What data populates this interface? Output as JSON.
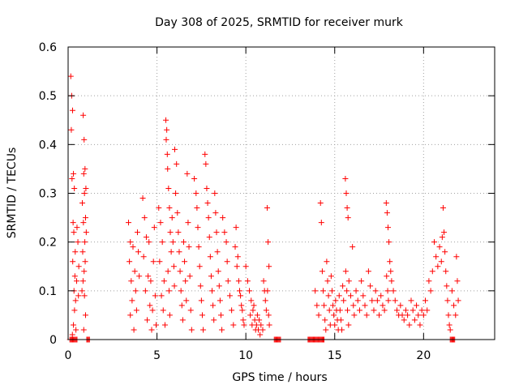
{
  "chart_data": {
    "type": "scatter",
    "title": "Day 308 of 2025, SRMTID for receiver murk",
    "xlabel": "GPS time / hours",
    "ylabel": "SRMTID / TECUs",
    "xlim": [
      0,
      24
    ],
    "ylim": [
      0,
      0.6
    ],
    "xticks": [
      0,
      5,
      10,
      15,
      20
    ],
    "xtick_labels": [
      "0",
      "5",
      "10",
      "15",
      "20"
    ],
    "yticks": [
      0,
      0.1,
      0.2,
      0.3,
      0.4,
      0.5,
      0.6
    ],
    "ytick_labels": [
      "0",
      "0.1",
      "0.2",
      "0.3",
      "0.4",
      "0.5",
      "0.6"
    ],
    "grid": true,
    "marker": "+",
    "color": "#ff0000",
    "series": [
      {
        "name": "SRMTID",
        "points": [
          [
            0.15,
            0.54
          ],
          [
            0.2,
            0.5
          ],
          [
            0.25,
            0.47
          ],
          [
            0.18,
            0.43
          ],
          [
            0.3,
            0.34
          ],
          [
            0.22,
            0.33
          ],
          [
            0.35,
            0.31
          ],
          [
            0.28,
            0.24
          ],
          [
            0.32,
            0.22
          ],
          [
            0.4,
            0.18
          ],
          [
            0.26,
            0.16
          ],
          [
            0.38,
            0.13
          ],
          [
            0.33,
            0.1
          ],
          [
            0.42,
            0.08
          ],
          [
            0.36,
            0.06
          ],
          [
            0.3,
            0.03
          ],
          [
            0.44,
            0.02
          ],
          [
            0.24,
            0.01
          ],
          [
            0.5,
            0.23
          ],
          [
            0.55,
            0.2
          ],
          [
            0.6,
            0.15
          ],
          [
            0.48,
            0.12
          ],
          [
            0.58,
            0.09
          ],
          [
            0.85,
            0.46
          ],
          [
            0.9,
            0.41
          ],
          [
            0.95,
            0.35
          ],
          [
            0.88,
            0.34
          ],
          [
            1.0,
            0.31
          ],
          [
            0.92,
            0.3
          ],
          [
            0.8,
            0.28
          ],
          [
            0.98,
            0.25
          ],
          [
            0.86,
            0.24
          ],
          [
            0.94,
            0.2
          ],
          [
            0.82,
            0.18
          ],
          [
            0.96,
            0.16
          ],
          [
            0.9,
            0.14
          ],
          [
            0.84,
            0.12
          ],
          [
            0.92,
            0.09
          ],
          [
            0.98,
            0.05
          ],
          [
            0.88,
            0.02
          ],
          [
            1.02,
            0.22
          ],
          [
            0.78,
            0.1
          ],
          [
            3.4,
            0.24
          ],
          [
            3.5,
            0.2
          ],
          [
            3.45,
            0.16
          ],
          [
            3.55,
            0.12
          ],
          [
            3.6,
            0.08
          ],
          [
            3.5,
            0.05
          ],
          [
            3.7,
            0.02
          ],
          [
            3.65,
            0.19
          ],
          [
            3.75,
            0.14
          ],
          [
            3.8,
            0.1
          ],
          [
            3.85,
            0.06
          ],
          [
            3.9,
            0.22
          ],
          [
            3.95,
            0.18
          ],
          [
            4.0,
            0.13
          ],
          [
            4.2,
            0.29
          ],
          [
            4.3,
            0.25
          ],
          [
            4.4,
            0.21
          ],
          [
            4.25,
            0.17
          ],
          [
            4.5,
            0.13
          ],
          [
            4.35,
            0.1
          ],
          [
            4.6,
            0.07
          ],
          [
            4.45,
            0.04
          ],
          [
            4.7,
            0.02
          ],
          [
            4.55,
            0.2
          ],
          [
            4.8,
            0.16
          ],
          [
            4.65,
            0.12
          ],
          [
            4.9,
            0.09
          ],
          [
            4.75,
            0.06
          ],
          [
            4.85,
            0.23
          ],
          [
            4.95,
            0.03
          ],
          [
            5.1,
            0.27
          ],
          [
            5.2,
            0.24
          ],
          [
            5.3,
            0.2
          ],
          [
            5.15,
            0.16
          ],
          [
            5.4,
            0.12
          ],
          [
            5.25,
            0.09
          ],
          [
            5.35,
            0.06
          ],
          [
            5.45,
            0.03
          ],
          [
            5.5,
            0.45
          ],
          [
            5.55,
            0.43
          ],
          [
            5.52,
            0.41
          ],
          [
            5.58,
            0.38
          ],
          [
            5.6,
            0.35
          ],
          [
            5.65,
            0.31
          ],
          [
            5.7,
            0.27
          ],
          [
            5.75,
            0.22
          ],
          [
            5.8,
            0.18
          ],
          [
            5.62,
            0.14
          ],
          [
            5.68,
            0.1
          ],
          [
            5.72,
            0.05
          ],
          [
            5.85,
            0.25
          ],
          [
            5.9,
            0.2
          ],
          [
            5.95,
            0.15
          ],
          [
            5.98,
            0.11
          ],
          [
            6.0,
            0.39
          ],
          [
            6.1,
            0.36
          ],
          [
            6.05,
            0.3
          ],
          [
            6.15,
            0.26
          ],
          [
            6.2,
            0.22
          ],
          [
            6.25,
            0.18
          ],
          [
            6.3,
            0.14
          ],
          [
            6.35,
            0.1
          ],
          [
            6.4,
            0.07
          ],
          [
            6.45,
            0.04
          ],
          [
            6.5,
            0.2
          ],
          [
            6.55,
            0.16
          ],
          [
            6.6,
            0.12
          ],
          [
            6.65,
            0.08
          ],
          [
            6.7,
            0.34
          ],
          [
            6.75,
            0.24
          ],
          [
            6.8,
            0.19
          ],
          [
            6.85,
            0.13
          ],
          [
            6.9,
            0.06
          ],
          [
            6.95,
            0.02
          ],
          [
            7.1,
            0.33
          ],
          [
            7.2,
            0.3
          ],
          [
            7.25,
            0.27
          ],
          [
            7.3,
            0.23
          ],
          [
            7.35,
            0.19
          ],
          [
            7.4,
            0.15
          ],
          [
            7.45,
            0.11
          ],
          [
            7.5,
            0.08
          ],
          [
            7.55,
            0.05
          ],
          [
            7.6,
            0.02
          ],
          [
            7.7,
            0.38
          ],
          [
            7.75,
            0.36
          ],
          [
            7.8,
            0.31
          ],
          [
            7.85,
            0.28
          ],
          [
            7.9,
            0.25
          ],
          [
            7.95,
            0.21
          ],
          [
            8.0,
            0.17
          ],
          [
            8.05,
            0.13
          ],
          [
            8.1,
            0.1
          ],
          [
            8.15,
            0.07
          ],
          [
            8.2,
            0.04
          ],
          [
            8.25,
            0.3
          ],
          [
            8.3,
            0.26
          ],
          [
            8.35,
            0.22
          ],
          [
            8.4,
            0.18
          ],
          [
            8.45,
            0.14
          ],
          [
            8.5,
            0.11
          ],
          [
            8.55,
            0.08
          ],
          [
            8.6,
            0.05
          ],
          [
            8.65,
            0.02
          ],
          [
            8.7,
            0.25
          ],
          [
            8.8,
            0.22
          ],
          [
            8.9,
            0.2
          ],
          [
            8.95,
            0.16
          ],
          [
            9.0,
            0.12
          ],
          [
            9.1,
            0.09
          ],
          [
            9.2,
            0.06
          ],
          [
            9.3,
            0.03
          ],
          [
            9.4,
            0.19
          ],
          [
            9.5,
            0.15
          ],
          [
            9.6,
            0.12
          ],
          [
            9.7,
            0.09
          ],
          [
            9.8,
            0.06
          ],
          [
            9.9,
            0.03
          ],
          [
            9.45,
            0.23
          ],
          [
            9.55,
            0.17
          ],
          [
            9.65,
            0.1
          ],
          [
            9.75,
            0.07
          ],
          [
            9.85,
            0.04
          ],
          [
            10.0,
            0.15
          ],
          [
            10.1,
            0.12
          ],
          [
            10.2,
            0.1
          ],
          [
            10.3,
            0.08
          ],
          [
            10.4,
            0.06
          ],
          [
            10.5,
            0.04
          ],
          [
            10.6,
            0.03
          ],
          [
            10.7,
            0.02
          ],
          [
            10.8,
            0.01
          ],
          [
            10.25,
            0.05
          ],
          [
            10.35,
            0.03
          ],
          [
            10.45,
            0.07
          ],
          [
            10.55,
            0.02
          ],
          [
            10.65,
            0.05
          ],
          [
            10.75,
            0.04
          ],
          [
            10.85,
            0.03
          ],
          [
            10.95,
            0.02
          ],
          [
            11.0,
            0.12
          ],
          [
            11.05,
            0.1
          ],
          [
            11.1,
            0.08
          ],
          [
            11.15,
            0.06
          ],
          [
            11.2,
            0.27
          ],
          [
            11.25,
            0.2
          ],
          [
            11.3,
            0.15
          ],
          [
            11.22,
            0.1
          ],
          [
            11.28,
            0.05
          ],
          [
            11.32,
            0.03
          ],
          [
            13.9,
            0.1
          ],
          [
            14.0,
            0.07
          ],
          [
            14.1,
            0.05
          ],
          [
            14.2,
            0.28
          ],
          [
            14.25,
            0.24
          ],
          [
            14.3,
            0.14
          ],
          [
            14.35,
            0.1
          ],
          [
            14.4,
            0.07
          ],
          [
            14.45,
            0.04
          ],
          [
            14.5,
            0.02
          ],
          [
            14.55,
            0.16
          ],
          [
            14.6,
            0.12
          ],
          [
            14.65,
            0.09
          ],
          [
            14.7,
            0.06
          ],
          [
            14.75,
            0.03
          ],
          [
            14.8,
            0.13
          ],
          [
            14.85,
            0.1
          ],
          [
            14.9,
            0.07
          ],
          [
            14.95,
            0.05
          ],
          [
            15.0,
            0.03
          ],
          [
            15.05,
            0.08
          ],
          [
            15.1,
            0.06
          ],
          [
            15.15,
            0.04
          ],
          [
            15.2,
            0.02
          ],
          [
            15.25,
            0.09
          ],
          [
            15.3,
            0.06
          ],
          [
            15.35,
            0.04
          ],
          [
            15.4,
            0.02
          ],
          [
            15.45,
            0.11
          ],
          [
            15.5,
            0.08
          ],
          [
            15.6,
            0.33
          ],
          [
            15.65,
            0.3
          ],
          [
            15.7,
            0.27
          ],
          [
            15.75,
            0.25
          ],
          [
            15.62,
            0.14
          ],
          [
            15.68,
            0.1
          ],
          [
            15.72,
            0.06
          ],
          [
            15.78,
            0.03
          ],
          [
            15.8,
            0.12
          ],
          [
            15.9,
            0.09
          ],
          [
            16.0,
            0.19
          ],
          [
            16.05,
            0.07
          ],
          [
            16.1,
            0.05
          ],
          [
            16.2,
            0.1
          ],
          [
            16.3,
            0.08
          ],
          [
            16.4,
            0.06
          ],
          [
            16.5,
            0.12
          ],
          [
            16.6,
            0.09
          ],
          [
            16.7,
            0.07
          ],
          [
            16.8,
            0.05
          ],
          [
            16.9,
            0.14
          ],
          [
            17.0,
            0.11
          ],
          [
            17.1,
            0.08
          ],
          [
            17.2,
            0.06
          ],
          [
            17.3,
            0.1
          ],
          [
            17.4,
            0.08
          ],
          [
            17.5,
            0.05
          ],
          [
            17.6,
            0.09
          ],
          [
            17.7,
            0.07
          ],
          [
            17.8,
            0.06
          ],
          [
            17.9,
            0.28
          ],
          [
            17.95,
            0.26
          ],
          [
            18.0,
            0.23
          ],
          [
            18.05,
            0.2
          ],
          [
            18.1,
            0.16
          ],
          [
            17.92,
            0.13
          ],
          [
            17.98,
            0.1
          ],
          [
            18.02,
            0.08
          ],
          [
            18.15,
            0.14
          ],
          [
            18.2,
            0.12
          ],
          [
            18.3,
            0.1
          ],
          [
            18.4,
            0.08
          ],
          [
            18.5,
            0.06
          ],
          [
            18.6,
            0.05
          ],
          [
            18.7,
            0.07
          ],
          [
            18.8,
            0.05
          ],
          [
            18.9,
            0.04
          ],
          [
            19.0,
            0.06
          ],
          [
            19.1,
            0.05
          ],
          [
            19.2,
            0.03
          ],
          [
            19.3,
            0.08
          ],
          [
            19.4,
            0.06
          ],
          [
            19.5,
            0.04
          ],
          [
            19.6,
            0.07
          ],
          [
            19.7,
            0.05
          ],
          [
            19.8,
            0.03
          ],
          [
            19.9,
            0.06
          ],
          [
            20.0,
            0.05
          ],
          [
            20.1,
            0.08
          ],
          [
            20.2,
            0.06
          ],
          [
            20.3,
            0.12
          ],
          [
            20.4,
            0.1
          ],
          [
            20.5,
            0.14
          ],
          [
            20.6,
            0.2
          ],
          [
            20.7,
            0.17
          ],
          [
            20.8,
            0.15
          ],
          [
            20.9,
            0.19
          ],
          [
            21.0,
            0.16
          ],
          [
            21.05,
            0.21
          ],
          [
            21.1,
            0.27
          ],
          [
            21.15,
            0.22
          ],
          [
            21.2,
            0.18
          ],
          [
            21.25,
            0.14
          ],
          [
            21.3,
            0.11
          ],
          [
            21.35,
            0.08
          ],
          [
            21.4,
            0.05
          ],
          [
            21.45,
            0.03
          ],
          [
            21.5,
            0.02
          ],
          [
            21.6,
            0.1
          ],
          [
            21.7,
            0.07
          ],
          [
            21.8,
            0.05
          ],
          [
            21.85,
            0.17
          ],
          [
            21.9,
            0.12
          ],
          [
            21.95,
            0.08
          ]
        ]
      }
    ],
    "zero_bands": [
      [
        0.1,
        0.5
      ],
      [
        1.05,
        1.2
      ],
      [
        11.6,
        11.95
      ],
      [
        13.5,
        14.4
      ],
      [
        21.5,
        21.75
      ]
    ]
  }
}
